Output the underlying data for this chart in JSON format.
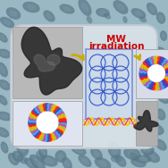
{
  "title_line1": "MW",
  "title_line2": "irradiation",
  "title_color": "#cc0000",
  "title_fontsize": 7.5,
  "bg_color": "#9ab8c4",
  "panel_facecolor": "#d8e2e8",
  "panel_edge": "#cccccc",
  "arrow_color": "#ccaa00",
  "wave_color1": "#ffcc00",
  "wave_color2": "#ff3300",
  "wave_color3": "#cc44cc",
  "flask_edge": "#3355cc",
  "flask_face": "#c8d8ee",
  "flask_alpha": 0.55,
  "small_circle_color": "#3355cc",
  "capsule_ring_colors": [
    "#3355bb",
    "#44aaee",
    "#cc44bb",
    "#aacc22",
    "#ffaa00",
    "#ee2222"
  ],
  "right_ring_colors": [
    "#3355bb",
    "#44aaee",
    "#cc44bb",
    "#aacc22",
    "#ffaa00",
    "#ee2222",
    "#5533bb"
  ],
  "tem_gray": "#c0c0c0",
  "blob_dark": "#252525",
  "blob_mid": "#555555"
}
